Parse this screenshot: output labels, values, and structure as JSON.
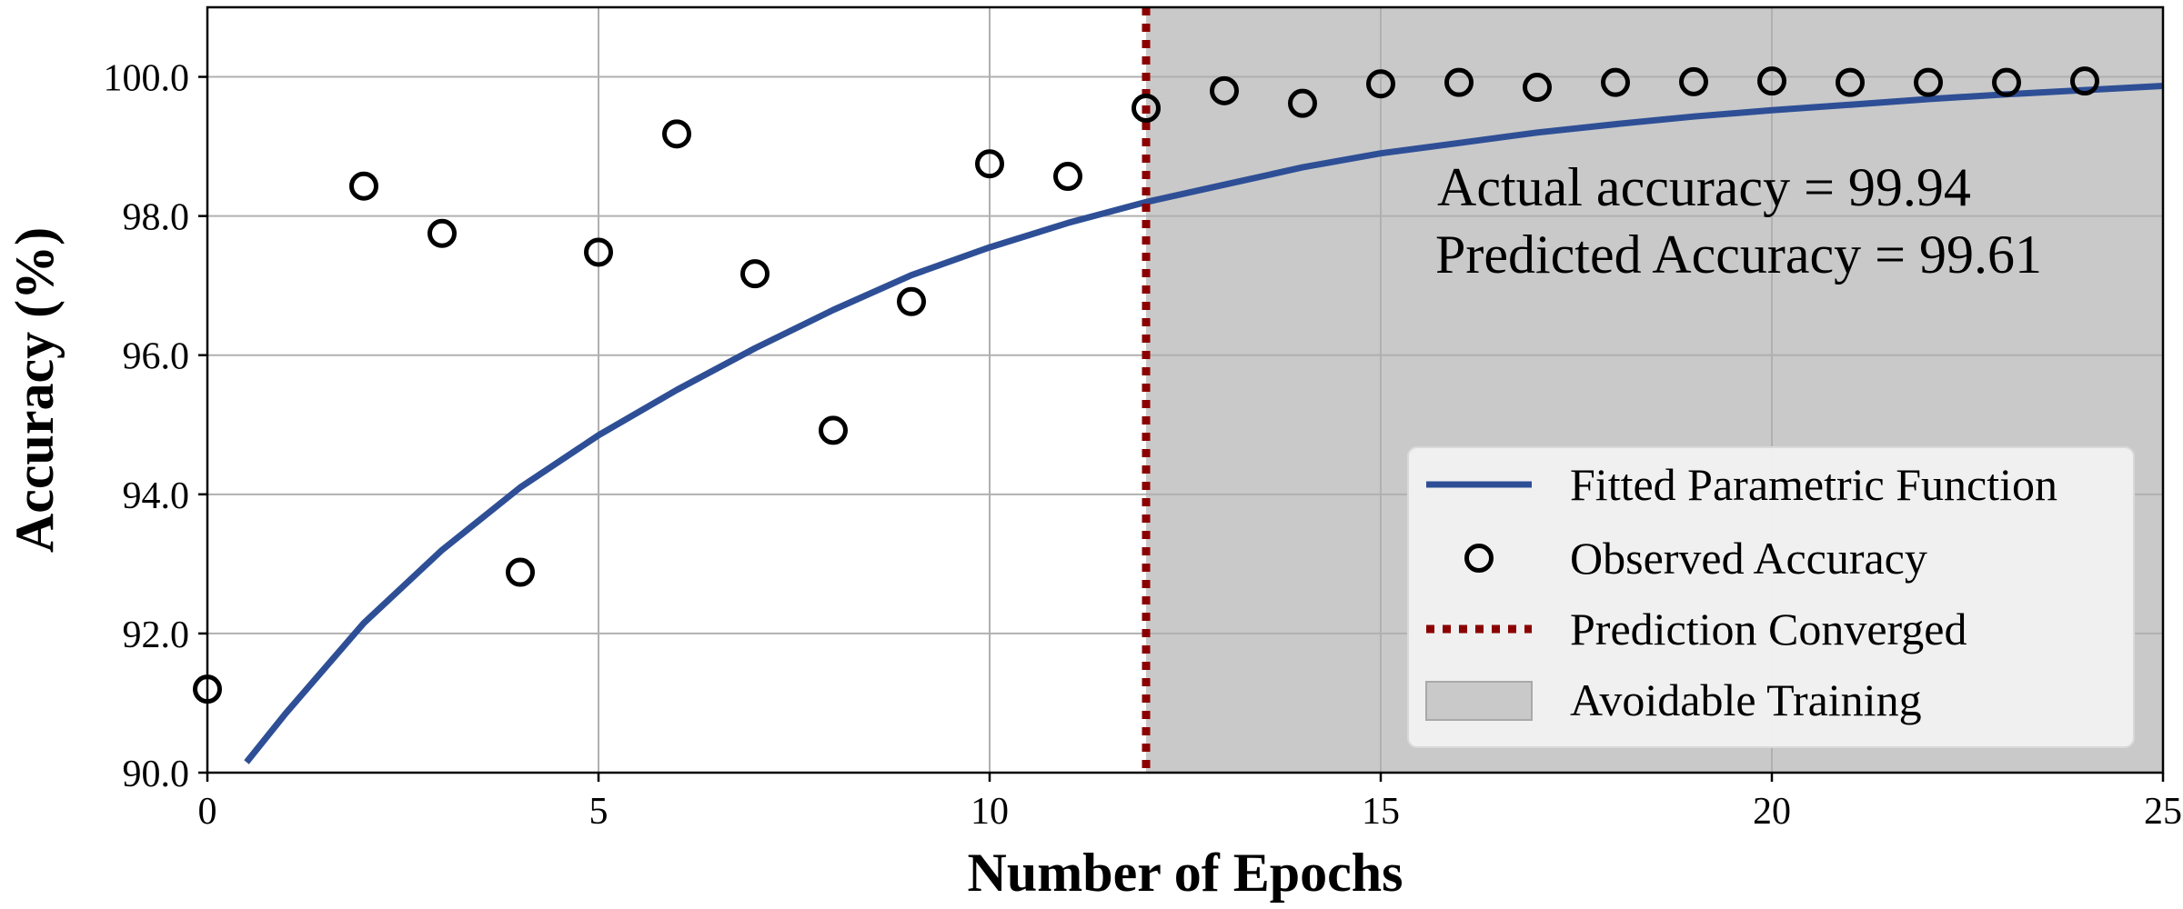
{
  "chart_data": {
    "type": "scatter",
    "xlabel": "Number of Epochs",
    "ylabel": "Accuracy (%)",
    "xlim": [
      0,
      25
    ],
    "ylim": [
      90,
      101
    ],
    "xticks": [
      "0",
      "5",
      "10",
      "15",
      "20",
      "25"
    ],
    "yticks": [
      "90.0",
      "92.0",
      "94.0",
      "96.0",
      "98.0",
      "100.0"
    ],
    "grid": true,
    "legend_position": "lower-right",
    "series": [
      {
        "name": "Observed Accuracy",
        "type": "scatter",
        "marker": "hollow-circle",
        "color": "#000000",
        "x": [
          0,
          2,
          3,
          4,
          5,
          6,
          7,
          8,
          9,
          10,
          11,
          12,
          13,
          14,
          15,
          16,
          17,
          18,
          19,
          20,
          21,
          22,
          23,
          24
        ],
        "y": [
          91.2,
          98.43,
          97.75,
          92.88,
          97.48,
          99.18,
          97.17,
          94.92,
          96.77,
          98.75,
          98.57,
          99.55,
          99.8,
          99.62,
          99.9,
          99.92,
          99.85,
          99.92,
          99.93,
          99.94,
          99.92,
          99.92,
          99.92,
          99.94
        ]
      },
      {
        "name": "Fitted Parametric Function",
        "type": "line",
        "color": "#2e4f96",
        "x": [
          0.5,
          1,
          2,
          3,
          4,
          5,
          6,
          7,
          8,
          9,
          10,
          11,
          12,
          13,
          14,
          15,
          16,
          17,
          18,
          19,
          20,
          21,
          22,
          23,
          24,
          25
        ],
        "y": [
          90.15,
          90.85,
          92.15,
          93.2,
          94.1,
          94.85,
          95.5,
          96.1,
          96.65,
          97.15,
          97.55,
          97.9,
          98.2,
          98.45,
          98.7,
          98.9,
          99.05,
          99.2,
          99.32,
          99.43,
          99.52,
          99.6,
          99.68,
          99.75,
          99.81,
          99.87
        ]
      },
      {
        "name": "Prediction Converged",
        "type": "vline",
        "color": "#8b0000",
        "x": 12
      },
      {
        "name": "Avoidable Training",
        "type": "span",
        "color": "#c9c9c9",
        "x_range": [
          12,
          25
        ]
      }
    ],
    "annotations": [
      "Actual accuracy = 99.94",
      "Predicted Accuracy = 99.61"
    ]
  }
}
